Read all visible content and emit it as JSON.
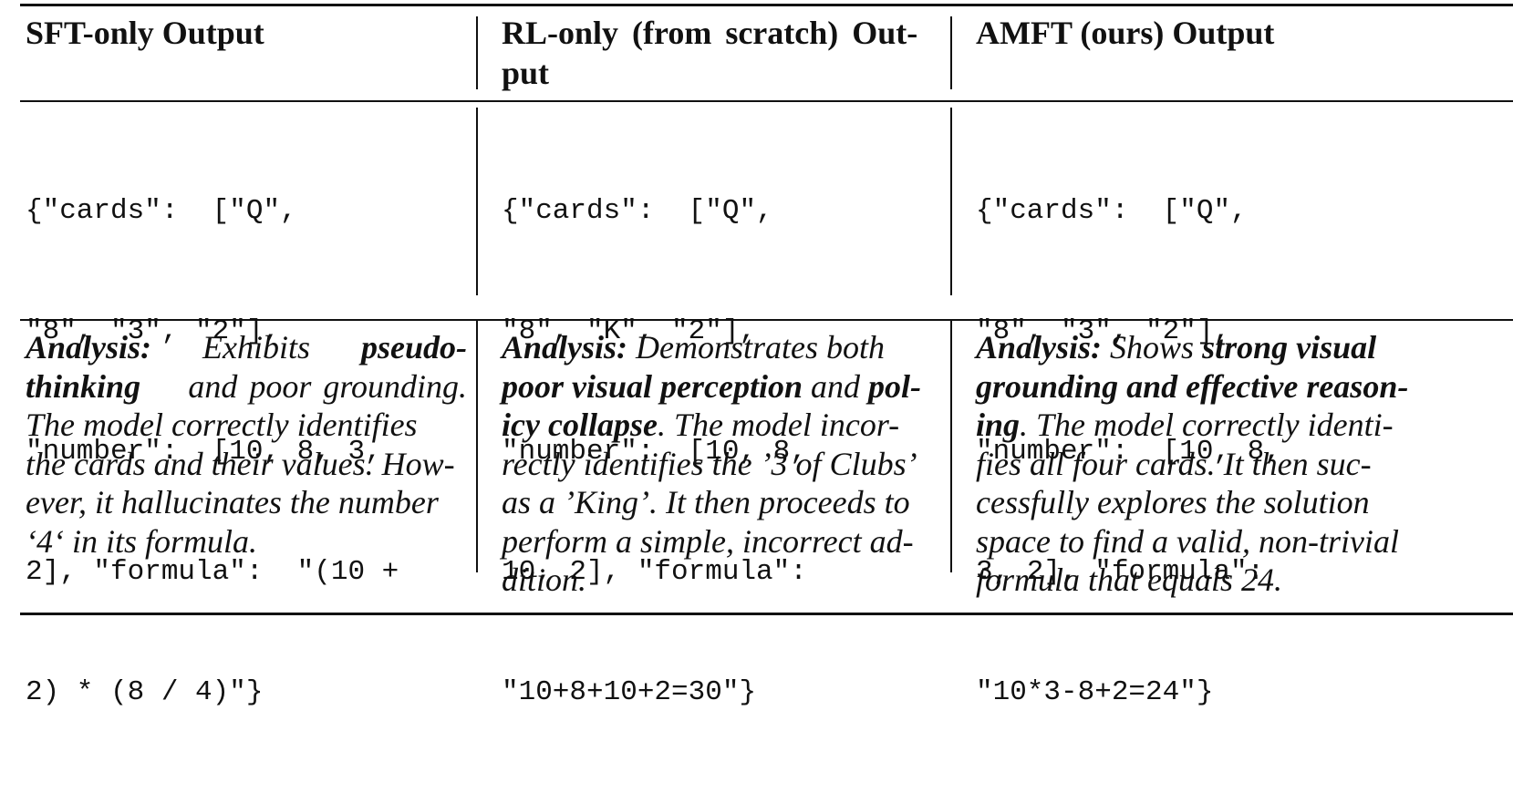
{
  "headers": {
    "col1": "SFT-only Output",
    "col2_line1": "RL-only (from scratch) Out-",
    "col2_line2": "put",
    "col3": "AMFT (ours) Output"
  },
  "code": {
    "col1": [
      "{\"cards\":  [\"Q\",",
      "\"8\", \"3\", \"2\"],",
      "\"number\":  [10, 8, 3,",
      "2], \"formula\":  \"(10 +",
      "2) * (8 / 4)\"}"
    ],
    "col2": [
      "{\"cards\":  [\"Q\",",
      "\"8\", \"K\", \"2\"],",
      "\"number\":  [10, 8,",
      "10, 2], \"formula\":",
      "\"10+8+10+2=30\"}"
    ],
    "col3": [
      "{\"cards\":  [\"Q\",",
      "\"8\", \"3\", \"2\"],",
      "\"number\":  [10, 8,",
      "3, 2], \"formula\":",
      "\"10*3-8+2=24\"}"
    ]
  },
  "analysis": {
    "col1": {
      "label": "Analysis:",
      "l1_a": "Exhibits",
      "l1_bold": "pseudo-",
      "l2_bold": "thinking",
      "l2_rest": "and poor grounding.",
      "l3": "The model correctly identifies",
      "l4": "the cards and their values. How-",
      "l5": "ever, it hallucinates the number",
      "l6": "‘4‘ in its formula."
    },
    "col2": {
      "label": "Analysis:",
      "l1_rest": "Demonstrates both",
      "l2_bold1": "poor visual perception",
      "l2_and": "and",
      "l2_bold2": "pol-",
      "l3_bold": "icy collapse",
      "l3_rest": ". The model incor-",
      "l4": "rectly identifies the ’3 of Clubs’",
      "l5": "as a ’King’. It then proceeds to",
      "l6": "perform a simple, incorrect ad-",
      "l7": "dition."
    },
    "col3": {
      "label": "Analysis:",
      "l1_rest": "Shows",
      "l1_bold": "strong visual",
      "l2_bold": "grounding and effective reason-",
      "l3_bold": "ing",
      "l3_rest": ". The model correctly identi-",
      "l4": "fies all four cards. It then suc-",
      "l5": "cessfully explores the solution",
      "l6": "space to find a valid, non-trivial",
      "l7": "formula that equals 24."
    }
  }
}
